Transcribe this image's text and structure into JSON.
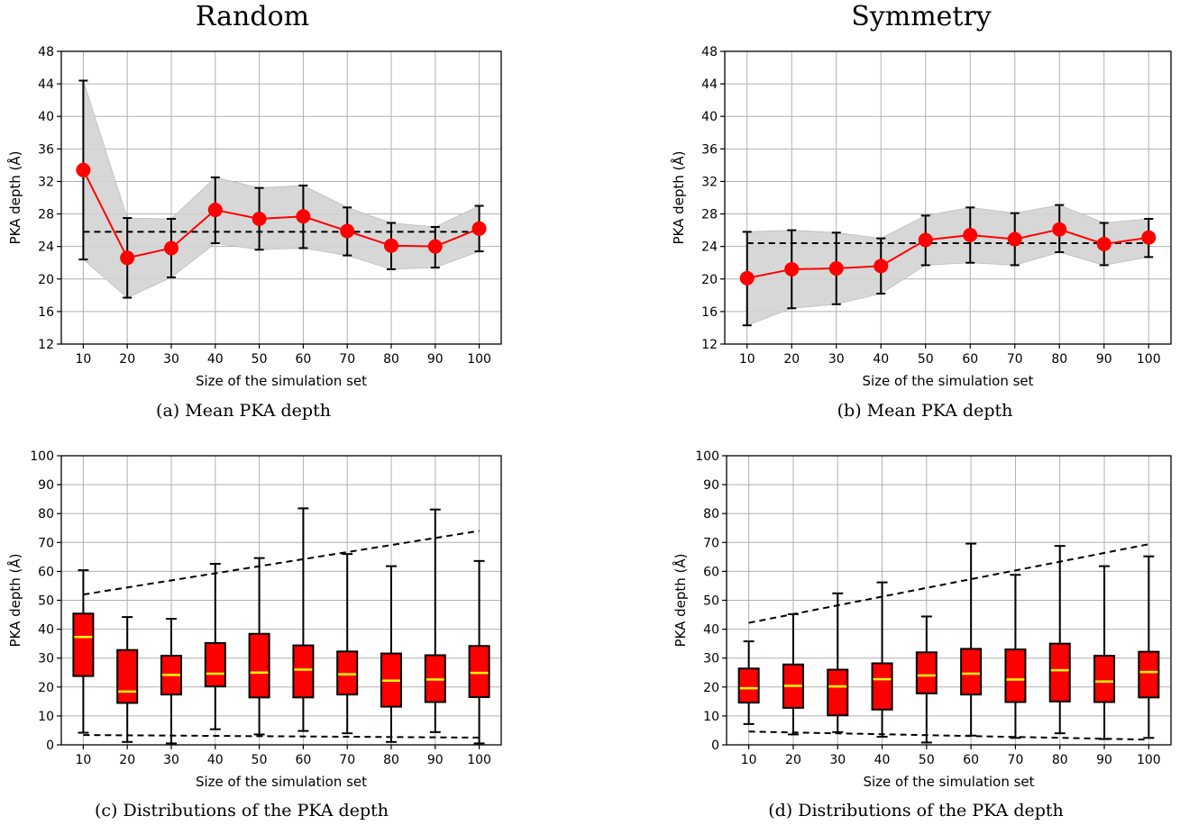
{
  "column_titles": [
    "Random",
    "Symmetry"
  ],
  "captions": [
    "(a)  Mean PKA depth",
    "(b)  Mean PKA depth",
    "(c)  Distributions of the PKA depth",
    "(d)  Distributions of the PKA depth"
  ],
  "colors": {
    "marker": "#ff0000",
    "band": "#d3d3d3",
    "box_fill": "#ff0000",
    "median": "#ffff00",
    "reference_line": "#000000"
  },
  "chart_data": [
    {
      "type": "line",
      "panel": "a",
      "x": [
        10,
        20,
        30,
        40,
        50,
        60,
        70,
        80,
        90,
        100
      ],
      "y": [
        33.4,
        22.6,
        23.8,
        28.5,
        27.4,
        27.7,
        25.9,
        24.1,
        24.0,
        26.2
      ],
      "err_low": [
        22.4,
        17.7,
        20.2,
        24.4,
        23.6,
        23.8,
        22.9,
        21.2,
        21.4,
        23.4
      ],
      "err_high": [
        44.4,
        27.5,
        27.4,
        32.5,
        31.2,
        31.5,
        28.8,
        26.9,
        26.4,
        29.0
      ],
      "reference_mean": 25.8,
      "xlabel": "Size of the simulation set",
      "ylabel": "PKA depth (Å)",
      "ylim": [
        12,
        48
      ],
      "yticks": [
        12,
        16,
        20,
        24,
        28,
        32,
        36,
        40,
        44,
        48
      ],
      "xticks": [
        10,
        20,
        30,
        40,
        50,
        60,
        70,
        80,
        90,
        100
      ],
      "grid": true
    },
    {
      "type": "line",
      "panel": "b",
      "x": [
        10,
        20,
        30,
        40,
        50,
        60,
        70,
        80,
        90,
        100
      ],
      "y": [
        20.1,
        21.2,
        21.3,
        21.6,
        24.8,
        25.4,
        24.9,
        26.1,
        24.3,
        25.1
      ],
      "err_low": [
        14.3,
        16.4,
        16.9,
        18.2,
        21.7,
        22.0,
        21.7,
        23.3,
        21.7,
        22.7
      ],
      "err_high": [
        25.8,
        26.0,
        25.7,
        25.0,
        27.8,
        28.8,
        28.1,
        29.1,
        26.9,
        27.4
      ],
      "reference_mean": 24.4,
      "xlabel": "Size of the simulation set",
      "ylabel": "PKA depth (Å)",
      "ylim": [
        12,
        48
      ],
      "yticks": [
        12,
        16,
        20,
        24,
        28,
        32,
        36,
        40,
        44,
        48
      ],
      "xticks": [
        10,
        20,
        30,
        40,
        50,
        60,
        70,
        80,
        90,
        100
      ],
      "grid": true
    },
    {
      "type": "box",
      "panel": "c",
      "x": [
        10,
        20,
        30,
        40,
        50,
        60,
        70,
        80,
        90,
        100
      ],
      "whisker_low": [
        4.2,
        1.0,
        0.5,
        5.4,
        3.6,
        4.8,
        4.0,
        1.0,
        4.4,
        0.5
      ],
      "q1": [
        23.8,
        14.5,
        17.4,
        20.2,
        16.4,
        16.4,
        17.4,
        13.2,
        14.8,
        16.5
      ],
      "median": [
        37.3,
        18.4,
        24.2,
        24.6,
        25.0,
        26.0,
        24.4,
        22.2,
        22.6,
        24.9
      ],
      "q3": [
        45.4,
        32.8,
        30.8,
        35.2,
        38.4,
        34.4,
        32.3,
        31.6,
        31.0,
        34.2
      ],
      "whisker_high": [
        60.4,
        44.2,
        43.6,
        62.6,
        64.6,
        81.8,
        66.0,
        61.8,
        81.4,
        63.6
      ],
      "trend_upper": [
        52.0,
        74.0
      ],
      "trend_lower": [
        3.4,
        2.5
      ],
      "xlabel": "Size of the simulation set",
      "ylabel": "PKA depth (Å)",
      "ylim": [
        0,
        100
      ],
      "yticks": [
        0,
        10,
        20,
        30,
        40,
        50,
        60,
        70,
        80,
        90,
        100
      ],
      "xticks": [
        10,
        20,
        30,
        40,
        50,
        60,
        70,
        80,
        90,
        100
      ],
      "grid": true
    },
    {
      "type": "box",
      "panel": "d",
      "x": [
        10,
        20,
        30,
        40,
        50,
        60,
        70,
        80,
        90,
        100
      ],
      "whisker_low": [
        7.2,
        3.6,
        4.4,
        2.8,
        0.8,
        3.2,
        2.4,
        4.0,
        2.0,
        2.4
      ],
      "q1": [
        14.6,
        12.8,
        10.2,
        12.2,
        17.8,
        17.4,
        14.8,
        15.0,
        14.8,
        16.4
      ],
      "median": [
        19.6,
        20.4,
        20.2,
        22.7,
        24.0,
        24.6,
        22.6,
        25.8,
        21.9,
        25.2
      ],
      "q3": [
        26.4,
        27.8,
        26.0,
        28.2,
        32.0,
        33.2,
        33.0,
        35.0,
        30.8,
        32.2
      ],
      "whisker_high": [
        35.8,
        45.2,
        52.4,
        56.2,
        44.4,
        69.6,
        58.8,
        68.8,
        61.8,
        65.2
      ],
      "trend_upper": [
        42.2,
        69.4
      ],
      "trend_lower": [
        4.6,
        1.8
      ],
      "xlabel": "Size of the simulation set",
      "ylabel": "PKA depth (Å)",
      "ylim": [
        0,
        100
      ],
      "yticks": [
        0,
        10,
        20,
        30,
        40,
        50,
        60,
        70,
        80,
        90,
        100
      ],
      "xticks": [
        10,
        20,
        30,
        40,
        50,
        60,
        70,
        80,
        90,
        100
      ],
      "grid": true
    }
  ]
}
